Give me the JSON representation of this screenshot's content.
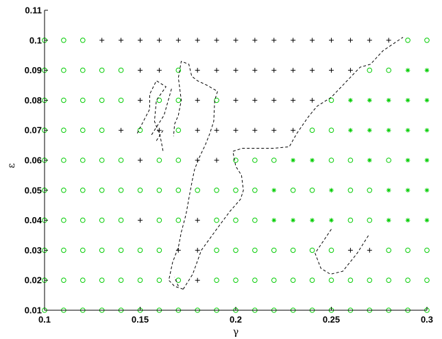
{
  "chart_data": {
    "type": "scatter",
    "title": "",
    "xlabel": "γ",
    "ylabel": "ε",
    "xlim": [
      0.1,
      0.3
    ],
    "ylim": [
      0.01,
      0.11
    ],
    "x_ticks": [
      "0.1",
      "0.15",
      "0.2",
      "0.25",
      "0.3"
    ],
    "y_ticks": [
      "0.01",
      "0.02",
      "0.03",
      "0.04",
      "0.05",
      "0.06",
      "0.07",
      "0.08",
      "0.09",
      "0.1",
      "0.11"
    ],
    "grid": false,
    "marker_colors": {
      "circle": "#00cc00",
      "star": "#00cc00",
      "plus": "#000000",
      "boundary": "#000000"
    },
    "x_grid": [
      0.1,
      0.11,
      0.12,
      0.13,
      0.14,
      0.15,
      0.16,
      0.17,
      0.18,
      0.19,
      0.2,
      0.21,
      0.22,
      0.23,
      0.24,
      0.25,
      0.26,
      0.27,
      0.28,
      0.29,
      0.3
    ],
    "rows": [
      {
        "y": 0.1,
        "markers": "oooPPPPPPPPPPPPPPPPoo"
      },
      {
        "y": 0.09,
        "markers": "oooooPPoPPPPPPPPPoo**"
      },
      {
        "y": 0.08,
        "markers": "oooooPooPoPPPPPo*****"
      },
      {
        "y": 0.07,
        "markers": "ooooPoPoPPPPPPoo*****"
      },
      {
        "y": 0.06,
        "markers": "oooooPooPPooo**oo*o**"
      },
      {
        "y": 0.05,
        "markers": "oooooooooooo*oo*oo***"
      },
      {
        "y": 0.04,
        "markers": "oooooPooPooo****oo***"
      },
      {
        "y": 0.03,
        "markers": "oooooooPPoooooooPPooo"
      },
      {
        "y": 0.02,
        "markers": "ooooooooPoooooooooooo"
      },
      {
        "y": 0.01,
        "markers": "ooooooooooooooooooooo"
      }
    ],
    "boundaries": [
      {
        "name": "",
        "points": [
          [
            0.1725,
            0.017
          ],
          [
            0.1775,
            0.022
          ],
          [
            0.182,
            0.03
          ],
          [
            0.19,
            0.037
          ],
          [
            0.197,
            0.043
          ],
          [
            0.2025,
            0.047
          ],
          [
            0.204,
            0.05
          ],
          [
            0.203,
            0.055
          ],
          [
            0.2,
            0.058
          ],
          [
            0.1985,
            0.063
          ],
          [
            0.2035,
            0.064
          ],
          [
            0.22,
            0.064
          ],
          [
            0.228,
            0.0645
          ],
          [
            0.232,
            0.069
          ],
          [
            0.238,
            0.0745
          ],
          [
            0.2425,
            0.078
          ],
          [
            0.25,
            0.081
          ],
          [
            0.2575,
            0.086
          ],
          [
            0.265,
            0.091
          ],
          [
            0.2705,
            0.092
          ],
          [
            0.277,
            0.0965
          ],
          [
            0.2875,
            0.101
          ]
        ]
      },
      {
        "name": "",
        "points": [
          [
            0.1725,
            0.017
          ],
          [
            0.168,
            0.018
          ],
          [
            0.165,
            0.02
          ],
          [
            0.167,
            0.026
          ],
          [
            0.17,
            0.031
          ],
          [
            0.1715,
            0.036
          ],
          [
            0.174,
            0.042
          ],
          [
            0.176,
            0.049
          ],
          [
            0.1775,
            0.054
          ],
          [
            0.1785,
            0.057
          ],
          [
            0.181,
            0.061
          ],
          [
            0.184,
            0.065
          ],
          [
            0.1865,
            0.069
          ],
          [
            0.1885,
            0.073
          ],
          [
            0.189,
            0.08
          ],
          [
            0.1905,
            0.083
          ],
          [
            0.185,
            0.085
          ],
          [
            0.18,
            0.0865
          ],
          [
            0.177,
            0.088
          ],
          [
            0.1755,
            0.092
          ],
          [
            0.1715,
            0.093
          ],
          [
            0.17,
            0.0875
          ],
          [
            0.1715,
            0.08
          ],
          [
            0.17,
            0.075
          ],
          [
            0.168,
            0.072
          ],
          [
            0.1675,
            0.068
          ]
        ]
      },
      {
        "name": "",
        "points": [
          [
            0.1485,
            0.069
          ],
          [
            0.1525,
            0.074
          ],
          [
            0.155,
            0.077
          ],
          [
            0.155,
            0.082
          ],
          [
            0.1585,
            0.0865
          ],
          [
            0.1635,
            0.0845
          ],
          [
            0.1585,
            0.08
          ],
          [
            0.1575,
            0.073
          ],
          [
            0.1605,
            0.068
          ],
          [
            0.162,
            0.063
          ]
        ]
      },
      {
        "name": "",
        "points": [
          [
            0.156,
            0.0685
          ],
          [
            0.1625,
            0.075
          ],
          [
            0.1665,
            0.084
          ]
        ]
      },
      {
        "name": "",
        "points": [
          [
            0.1585,
            0.0665
          ],
          [
            0.162,
            0.07
          ]
        ]
      },
      {
        "name": "",
        "points": [
          [
            0.25,
            0.037
          ],
          [
            0.2415,
            0.029
          ],
          [
            0.2445,
            0.024
          ],
          [
            0.2495,
            0.022
          ],
          [
            0.256,
            0.023
          ],
          [
            0.2635,
            0.029
          ],
          [
            0.2695,
            0.035
          ]
        ]
      },
      {
        "name": "",
        "points": [
          [
            0.17,
            0.018
          ],
          [
            0.168,
            0.021
          ]
        ]
      }
    ]
  }
}
